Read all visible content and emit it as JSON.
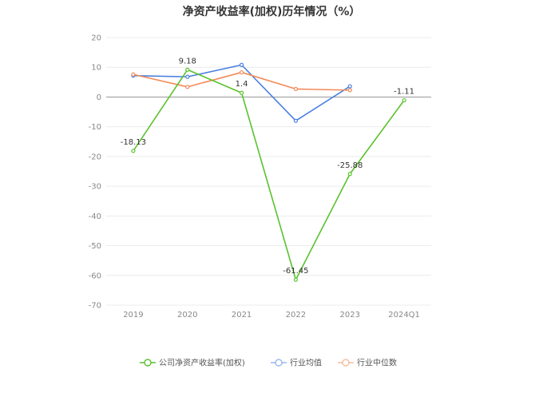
{
  "chart_data": {
    "type": "line",
    "title": "净资产收益率(加权)历年情况（%）",
    "xlabel": "",
    "ylabel": "",
    "categories": [
      "2019",
      "2020",
      "2021",
      "2022",
      "2023",
      "2024Q1"
    ],
    "ylim": [
      -70,
      20
    ],
    "yticks": [
      20,
      10,
      0,
      -10,
      -20,
      -30,
      -40,
      -50,
      -60,
      -70
    ],
    "grid": true,
    "legend_position": "bottom",
    "series": [
      {
        "name": "公司净资产收益率(加权)",
        "color": "#5ac22e",
        "values": [
          -18.13,
          9.18,
          1.4,
          -61.45,
          -25.88,
          -1.11
        ],
        "labels": [
          "-18.13",
          "9.18",
          "1.4",
          "-61.45",
          "-25.88",
          "-1.11"
        ]
      },
      {
        "name": "行业均值",
        "color": "#4a7fe0",
        "values": [
          7.2,
          6.8,
          10.8,
          -8.0,
          3.6,
          null
        ],
        "labels": null
      },
      {
        "name": "行业中位数",
        "color": "#f28b5a",
        "values": [
          7.6,
          3.4,
          8.3,
          2.7,
          2.3,
          null
        ],
        "labels": null
      }
    ]
  }
}
